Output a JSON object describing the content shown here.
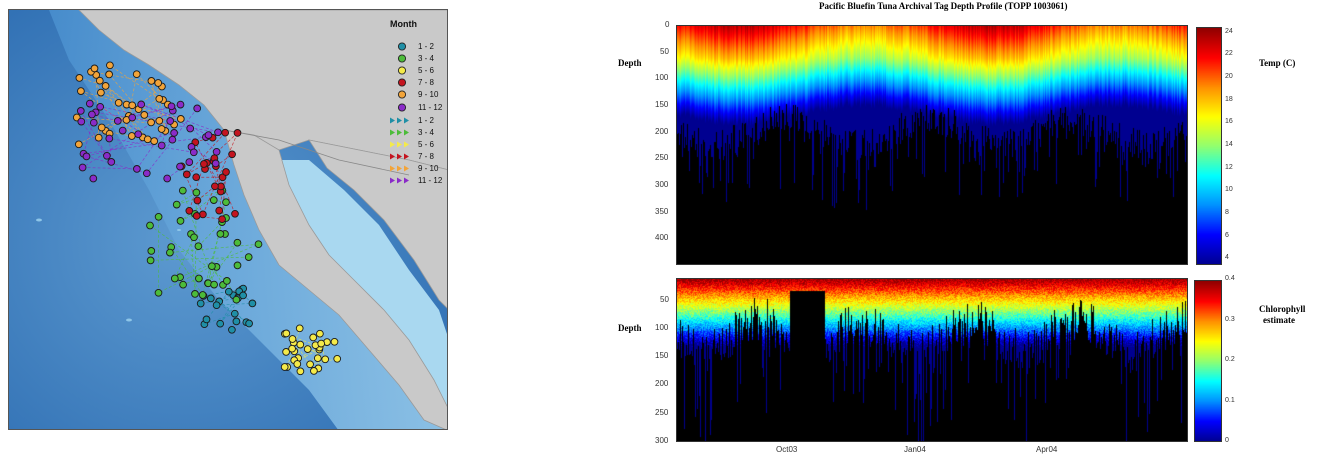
{
  "map": {
    "legend_title": "Month",
    "legend_points": [
      {
        "label": "1 - 2",
        "color": "#1f8fa6"
      },
      {
        "label": "3 - 4",
        "color": "#4cbc3a"
      },
      {
        "label": "5 - 6",
        "color": "#f4ea4a"
      },
      {
        "label": "7 - 8",
        "color": "#c4141f"
      },
      {
        "label": "9 - 10",
        "color": "#f2a43a"
      },
      {
        "label": "11 - 12",
        "color": "#8a2bc8"
      }
    ],
    "legend_tracks": [
      {
        "label": "1 - 2",
        "color": "#1f8fa6"
      },
      {
        "label": "3 - 4",
        "color": "#4cbc3a"
      },
      {
        "label": "5 - 6",
        "color": "#f4ea4a"
      },
      {
        "label": "7 - 8",
        "color": "#c4141f"
      },
      {
        "label": "9 - 10",
        "color": "#f2a43a"
      },
      {
        "label": "11 - 12",
        "color": "#8a2bc8"
      }
    ],
    "colors": {
      "land": "#c8c8c8",
      "deep_ocean": "#2f72b6",
      "shelf": "#8ec6e8",
      "coast": "#bfe4f4"
    }
  },
  "chart_data": [
    {
      "type": "heatmap",
      "title": "Pacific Bluefin Tuna Archival Tag Depth Profile (TOPP 1003061)",
      "ylabel": "Depth",
      "ylim": [
        0,
        450
      ],
      "yticks": [
        "0",
        "50",
        "100",
        "150",
        "200",
        "250",
        "300",
        "350",
        "400"
      ],
      "colorbar_label": "Temp (C)",
      "colorbar_range": [
        3.5,
        24.5
      ],
      "colorbar_ticks": [
        "24",
        "22",
        "20",
        "18",
        "16",
        "14",
        "12",
        "10",
        "8",
        "6",
        "4"
      ],
      "colormap": [
        "#000090",
        "#0000ff",
        "#0090ff",
        "#00ffff",
        "#90ff70",
        "#ffff00",
        "#ff9000",
        "#ff0000",
        "#900000"
      ],
      "grid": false
    },
    {
      "type": "heatmap",
      "ylabel": "Depth",
      "ylim": [
        10,
        300
      ],
      "yticks": [
        "50",
        "100",
        "150",
        "200",
        "250",
        "300"
      ],
      "xticks": [
        "Oct03",
        "Jan04",
        "Apr04"
      ],
      "colorbar_label": [
        "Chlorophyll",
        "estimate"
      ],
      "colorbar_range": [
        0,
        0.4
      ],
      "colorbar_ticks": [
        "0.4",
        "0.3",
        "0.2",
        "0.1",
        "0"
      ],
      "colormap": [
        "#000090",
        "#0000ff",
        "#0090ff",
        "#00ffff",
        "#90ff70",
        "#ffff00",
        "#ff9000",
        "#ff0000",
        "#900000"
      ],
      "grid": false
    }
  ]
}
